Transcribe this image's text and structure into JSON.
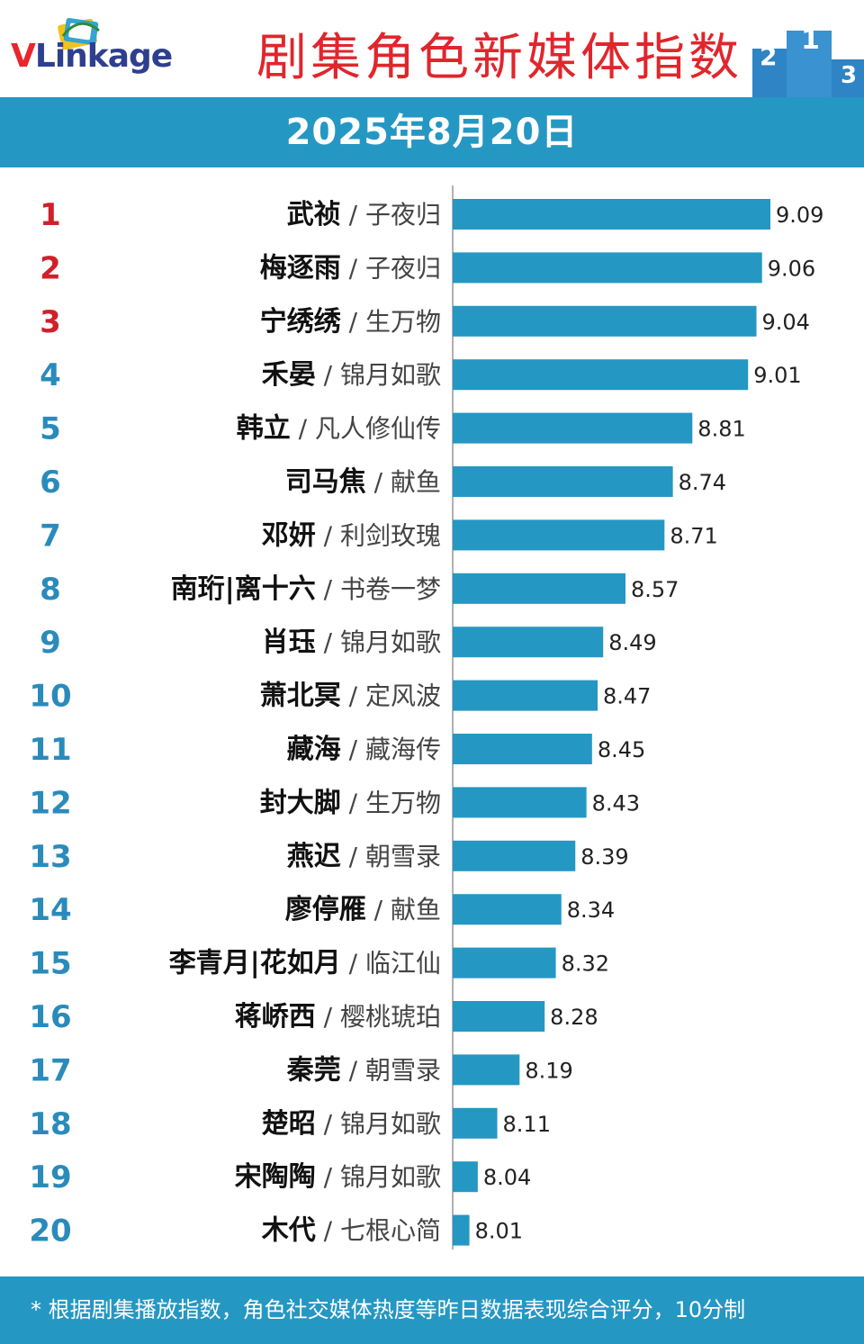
{
  "header": {
    "logo_text_red": "V",
    "logo_text_blue": "Linkage",
    "title": "剧集角色新媒体指数",
    "podium_labels": [
      "2",
      "1",
      "3"
    ]
  },
  "date": "2025年8月20日",
  "footer": {
    "note": "* 根据剧集播放指数，角色社交媒体热度等昨日数据表现综合评分，10分制"
  },
  "colors": {
    "bar": "#2597c3",
    "band": "#2597c3",
    "title_red": "#e0262c",
    "rank_top3": "#d0202a",
    "rank_rest": "#2a8bbb"
  },
  "chart_data": {
    "type": "bar",
    "orientation": "horizontal",
    "title": "剧集角色新媒体指数",
    "xlim": [
      7.95,
      9.2
    ],
    "rows": [
      {
        "rank": "1",
        "name": "武祯",
        "show": "子夜归",
        "value": 9.09
      },
      {
        "rank": "2",
        "name": "梅逐雨",
        "show": "子夜归",
        "value": 9.06
      },
      {
        "rank": "3",
        "name": "宁绣绣",
        "show": "生万物",
        "value": 9.04
      },
      {
        "rank": "4",
        "name": "禾晏",
        "show": "锦月如歌",
        "value": 9.01
      },
      {
        "rank": "5",
        "name": "韩立",
        "show": "凡人修仙传",
        "value": 8.81
      },
      {
        "rank": "6",
        "name": "司马焦",
        "show": "献鱼",
        "value": 8.74
      },
      {
        "rank": "7",
        "name": "邓妍",
        "show": "利剑玫瑰",
        "value": 8.71
      },
      {
        "rank": "8",
        "name": "南珩|离十六",
        "show": "书卷一梦",
        "value": 8.57
      },
      {
        "rank": "9",
        "name": "肖珏",
        "show": "锦月如歌",
        "value": 8.49
      },
      {
        "rank": "10",
        "name": "萧北冥",
        "show": "定风波",
        "value": 8.47
      },
      {
        "rank": "11",
        "name": "藏海",
        "show": "藏海传",
        "value": 8.45
      },
      {
        "rank": "12",
        "name": "封大脚",
        "show": "生万物",
        "value": 8.43
      },
      {
        "rank": "13",
        "name": "燕迟",
        "show": "朝雪录",
        "value": 8.39
      },
      {
        "rank": "14",
        "name": "廖停雁",
        "show": "献鱼",
        "value": 8.34
      },
      {
        "rank": "15",
        "name": "李青月|花如月",
        "show": "临江仙",
        "value": 8.32
      },
      {
        "rank": "16",
        "name": "蒋峤西",
        "show": "樱桃琥珀",
        "value": 8.28
      },
      {
        "rank": "17",
        "name": "秦莞",
        "show": "朝雪录",
        "value": 8.19
      },
      {
        "rank": "18",
        "name": "楚昭",
        "show": "锦月如歌",
        "value": 8.11
      },
      {
        "rank": "19",
        "name": "宋陶陶",
        "show": "锦月如歌",
        "value": 8.04
      },
      {
        "rank": "20",
        "name": "木代",
        "show": "七根心简",
        "value": 8.01
      }
    ]
  }
}
